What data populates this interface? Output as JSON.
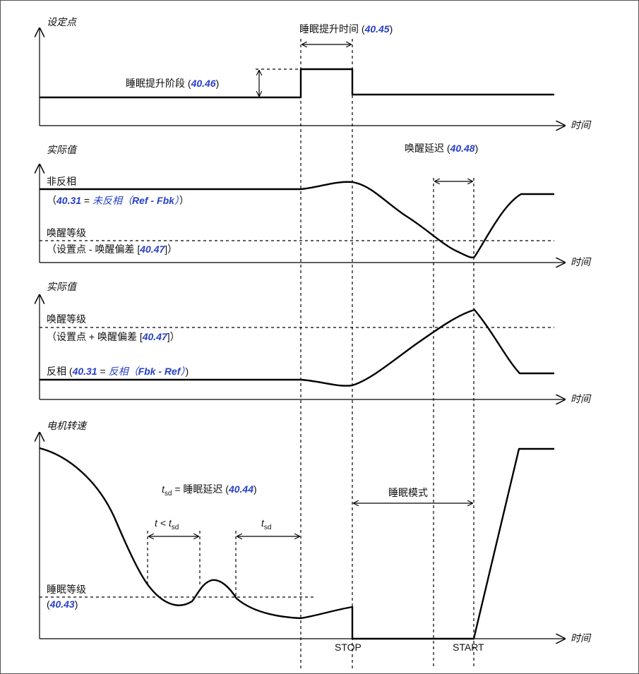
{
  "panel1": {
    "ylabel": "设定点",
    "boost_time_prefix": "睡眠提升时间 (",
    "boost_time_param": "40.45",
    "boost_time_suffix": ")",
    "boost_step_prefix": "睡眠提升阶段 (",
    "boost_step_param": "40.46",
    "boost_step_suffix": ")",
    "xlabel": "时间"
  },
  "panel2": {
    "ylabel": "实际值",
    "wake_delay_prefix": "唤醒延迟 (",
    "wake_delay_param": "40.48",
    "wake_delay_suffix": ")",
    "noninv_label": "非反相",
    "noninv_open": "（",
    "noninv_param": "40.31",
    "noninv_eq": " = ",
    "noninv_value_a": "未反相（",
    "noninv_value_b": "Ref - Fbk",
    "noninv_value_c": "）",
    "noninv_close": "）",
    "wake_level": "唤醒等级",
    "wake_formula_prefix": "（设置点 - 唤醒偏差 [",
    "wake_formula_param": "40.47",
    "wake_formula_suffix": "]）",
    "xlabel": "时间"
  },
  "panel3": {
    "ylabel": "实际值",
    "wake_level": "唤醒等级",
    "wake_formula_prefix": "（设置点 + 唤醒偏差 [",
    "wake_formula_param": "40.47",
    "wake_formula_suffix": "]）",
    "inv_prefix": "反相 (",
    "inv_param": "40.31",
    "inv_eq": " = ",
    "inv_value_a": "反相（",
    "inv_value_b": "Fbk - Ref",
    "inv_value_c": "）",
    "inv_suffix": ")",
    "xlabel": "时间"
  },
  "panel4": {
    "ylabel": "电机转速",
    "tsd_t": "t",
    "tsd_sub": "sd",
    "tsd_def_prefix": " = 睡眠延迟 (",
    "tsd_def_param": "40.44",
    "tsd_def_suffix": ")",
    "t_less_prefix": "t < t",
    "t_less_sub": "sd",
    "tsd2_t": "t",
    "tsd2_sub": "sd",
    "sleep_mode": "睡眠模式",
    "sleep_level": "睡眠等级",
    "sleep_level_open": "(",
    "sleep_level_param": "40.43",
    "sleep_level_close": ")",
    "stop": "STOP",
    "start": "START",
    "xlabel": "时间"
  }
}
